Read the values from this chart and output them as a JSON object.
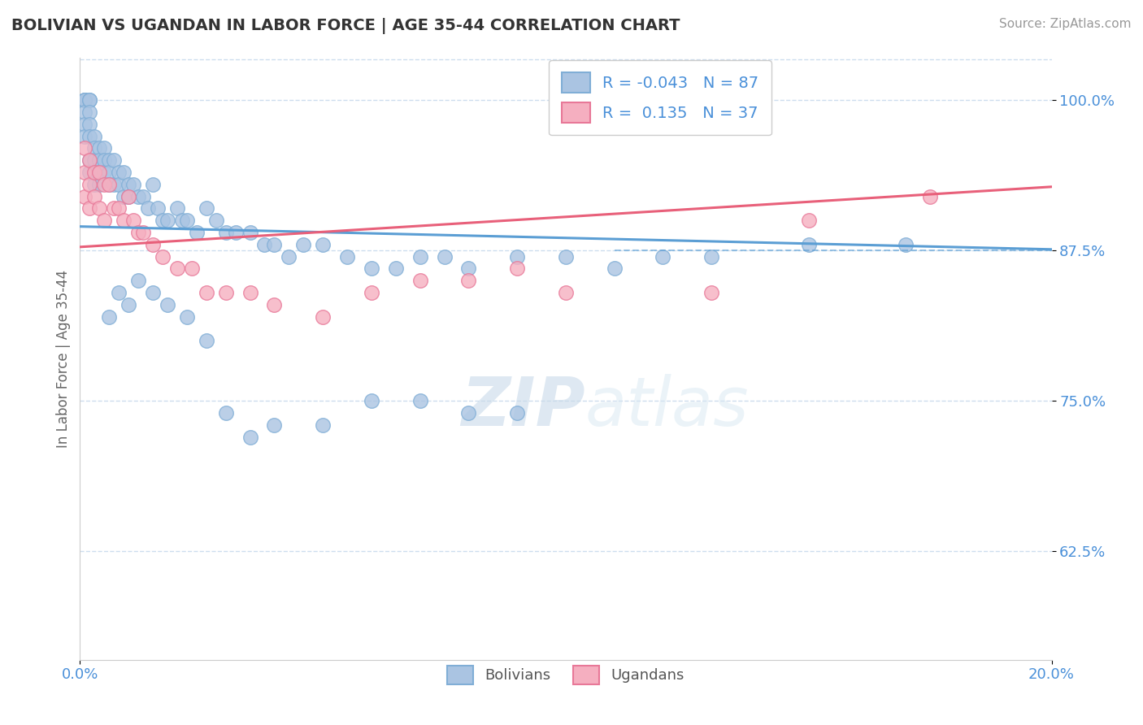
{
  "title": "BOLIVIAN VS UGANDAN IN LABOR FORCE | AGE 35-44 CORRELATION CHART",
  "source": "Source: ZipAtlas.com",
  "ylabel": "In Labor Force | Age 35-44",
  "xmin": 0.0,
  "xmax": 0.2,
  "ymin": 0.535,
  "ymax": 1.035,
  "yticks": [
    0.625,
    0.75,
    0.875,
    1.0
  ],
  "ytick_labels": [
    "62.5%",
    "75.0%",
    "87.5%",
    "100.0%"
  ],
  "xticks": [
    0.0,
    0.2
  ],
  "xtick_labels": [
    "0.0%",
    "20.0%"
  ],
  "blue_color": "#aac4e2",
  "pink_color": "#f5afc0",
  "blue_edge": "#80aed6",
  "pink_edge": "#e87898",
  "trend_blue": "#5b9ed4",
  "trend_pink": "#e8607a",
  "R_blue": -0.043,
  "N_blue": 87,
  "R_pink": 0.135,
  "N_pink": 37,
  "legend_label_blue": "Bolivians",
  "legend_label_pink": "Ugandans",
  "watermark_zip": "ZIP",
  "watermark_atlas": "atlas",
  "blue_trend_x0": 0.0,
  "blue_trend_y0": 0.895,
  "blue_trend_x1": 0.2,
  "blue_trend_y1": 0.876,
  "pink_trend_x0": 0.0,
  "pink_trend_y0": 0.878,
  "pink_trend_x1": 0.2,
  "pink_trend_y1": 0.928,
  "bolivians_x": [
    0.001,
    0.001,
    0.001,
    0.001,
    0.001,
    0.001,
    0.002,
    0.002,
    0.002,
    0.002,
    0.002,
    0.002,
    0.002,
    0.003,
    0.003,
    0.003,
    0.003,
    0.003,
    0.004,
    0.004,
    0.004,
    0.004,
    0.005,
    0.005,
    0.005,
    0.006,
    0.006,
    0.006,
    0.007,
    0.007,
    0.008,
    0.008,
    0.009,
    0.009,
    0.01,
    0.01,
    0.011,
    0.012,
    0.013,
    0.014,
    0.015,
    0.016,
    0.017,
    0.018,
    0.02,
    0.021,
    0.022,
    0.024,
    0.026,
    0.028,
    0.03,
    0.032,
    0.035,
    0.038,
    0.04,
    0.043,
    0.046,
    0.05,
    0.055,
    0.06,
    0.065,
    0.07,
    0.075,
    0.08,
    0.09,
    0.1,
    0.11,
    0.12,
    0.13,
    0.15,
    0.17,
    0.006,
    0.008,
    0.01,
    0.012,
    0.015,
    0.018,
    0.022,
    0.026,
    0.03,
    0.035,
    0.04,
    0.05,
    0.06,
    0.07,
    0.08,
    0.09
  ],
  "bolivians_y": [
    1.0,
    1.0,
    1.0,
    0.99,
    0.98,
    0.97,
    1.0,
    1.0,
    0.99,
    0.98,
    0.97,
    0.95,
    0.94,
    0.97,
    0.96,
    0.95,
    0.94,
    0.93,
    0.96,
    0.95,
    0.94,
    0.93,
    0.96,
    0.95,
    0.94,
    0.95,
    0.94,
    0.93,
    0.95,
    0.93,
    0.94,
    0.93,
    0.94,
    0.92,
    0.93,
    0.92,
    0.93,
    0.92,
    0.92,
    0.91,
    0.93,
    0.91,
    0.9,
    0.9,
    0.91,
    0.9,
    0.9,
    0.89,
    0.91,
    0.9,
    0.89,
    0.89,
    0.89,
    0.88,
    0.88,
    0.87,
    0.88,
    0.88,
    0.87,
    0.86,
    0.86,
    0.87,
    0.87,
    0.86,
    0.87,
    0.87,
    0.86,
    0.87,
    0.87,
    0.88,
    0.88,
    0.82,
    0.84,
    0.83,
    0.85,
    0.84,
    0.83,
    0.82,
    0.8,
    0.74,
    0.72,
    0.73,
    0.73,
    0.75,
    0.75,
    0.74,
    0.74
  ],
  "ugandans_x": [
    0.001,
    0.001,
    0.001,
    0.002,
    0.002,
    0.002,
    0.003,
    0.003,
    0.004,
    0.004,
    0.005,
    0.005,
    0.006,
    0.007,
    0.008,
    0.009,
    0.01,
    0.011,
    0.012,
    0.013,
    0.015,
    0.017,
    0.02,
    0.023,
    0.026,
    0.03,
    0.035,
    0.04,
    0.05,
    0.06,
    0.07,
    0.08,
    0.09,
    0.1,
    0.13,
    0.15,
    0.175
  ],
  "ugandans_y": [
    0.96,
    0.94,
    0.92,
    0.95,
    0.93,
    0.91,
    0.94,
    0.92,
    0.94,
    0.91,
    0.93,
    0.9,
    0.93,
    0.91,
    0.91,
    0.9,
    0.92,
    0.9,
    0.89,
    0.89,
    0.88,
    0.87,
    0.86,
    0.86,
    0.84,
    0.84,
    0.84,
    0.83,
    0.82,
    0.84,
    0.85,
    0.85,
    0.86,
    0.84,
    0.84,
    0.9,
    0.92
  ]
}
